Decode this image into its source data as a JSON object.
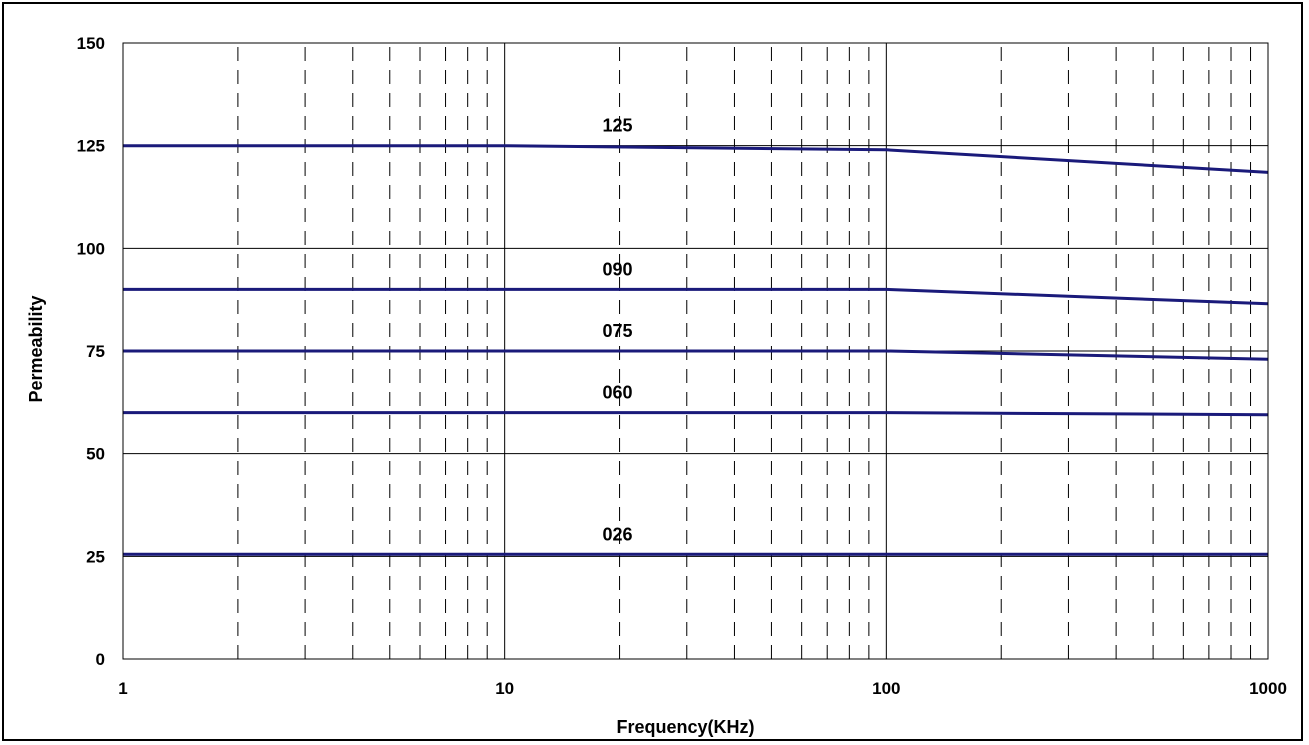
{
  "chart_data": {
    "type": "line",
    "title": "",
    "xlabel": "Frequency(KHz)",
    "ylabel": "Permeability",
    "x_scale": "log",
    "xlim": [
      1,
      1000
    ],
    "ylim": [
      0,
      150
    ],
    "x_ticks": [
      1,
      10,
      100,
      1000
    ],
    "x_tick_labels": [
      "1",
      "10",
      "100",
      "1000"
    ],
    "y_ticks": [
      0,
      25,
      50,
      75,
      100,
      125,
      150
    ],
    "y_tick_labels": [
      "0",
      "25",
      "50",
      "75",
      "100",
      "125",
      "150"
    ],
    "grid": true,
    "legend": "none",
    "line_color": "#1a1a7a",
    "series": [
      {
        "name": "125",
        "x": [
          1,
          10,
          100,
          1000
        ],
        "y": [
          125,
          125,
          124,
          118.5
        ]
      },
      {
        "name": "090",
        "x": [
          1,
          10,
          100,
          1000
        ],
        "y": [
          90,
          90,
          90,
          86.5
        ]
      },
      {
        "name": "075",
        "x": [
          1,
          10,
          100,
          1000
        ],
        "y": [
          75,
          75,
          75,
          73
        ]
      },
      {
        "name": "060",
        "x": [
          1,
          10,
          100,
          1000
        ],
        "y": [
          60,
          60,
          60,
          59.5
        ]
      },
      {
        "name": "026",
        "x": [
          1,
          10,
          100,
          1000
        ],
        "y": [
          25.5,
          25.5,
          25.5,
          25.5
        ]
      }
    ]
  }
}
